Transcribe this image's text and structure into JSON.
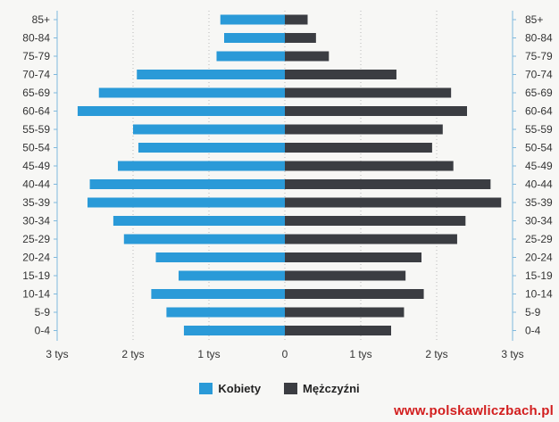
{
  "chart_data": {
    "type": "bar",
    "orientation": "horizontal-population-pyramid",
    "categories": [
      "85+",
      "80-84",
      "75-79",
      "70-74",
      "65-69",
      "60-64",
      "55-59",
      "50-54",
      "45-49",
      "40-44",
      "35-39",
      "30-34",
      "25-29",
      "20-24",
      "15-19",
      "10-14",
      "5-9",
      "0-4"
    ],
    "series": [
      {
        "name": "Kobiety",
        "color": "#2a9ad8",
        "values": [
          850,
          800,
          900,
          1950,
          2450,
          2730,
          2000,
          1930,
          2200,
          2570,
          2600,
          2260,
          2120,
          1700,
          1400,
          1760,
          1560,
          1330
        ]
      },
      {
        "name": "Mężczyźni",
        "color": "#3b3d42",
        "values": [
          300,
          410,
          580,
          1470,
          2190,
          2400,
          2080,
          1940,
          2220,
          2710,
          2850,
          2380,
          2270,
          1800,
          1590,
          1830,
          1570,
          1400
        ]
      }
    ],
    "x_ticks": [
      "3 tys",
      "2 tys",
      "1 tys",
      "0",
      "1 tys",
      "2 tys",
      "3 tys"
    ],
    "xlim": [
      -3000,
      3000
    ],
    "grid": "vertical dotted",
    "legend": "bottom-center"
  },
  "watermark": "www.polskawliczbach.pl"
}
